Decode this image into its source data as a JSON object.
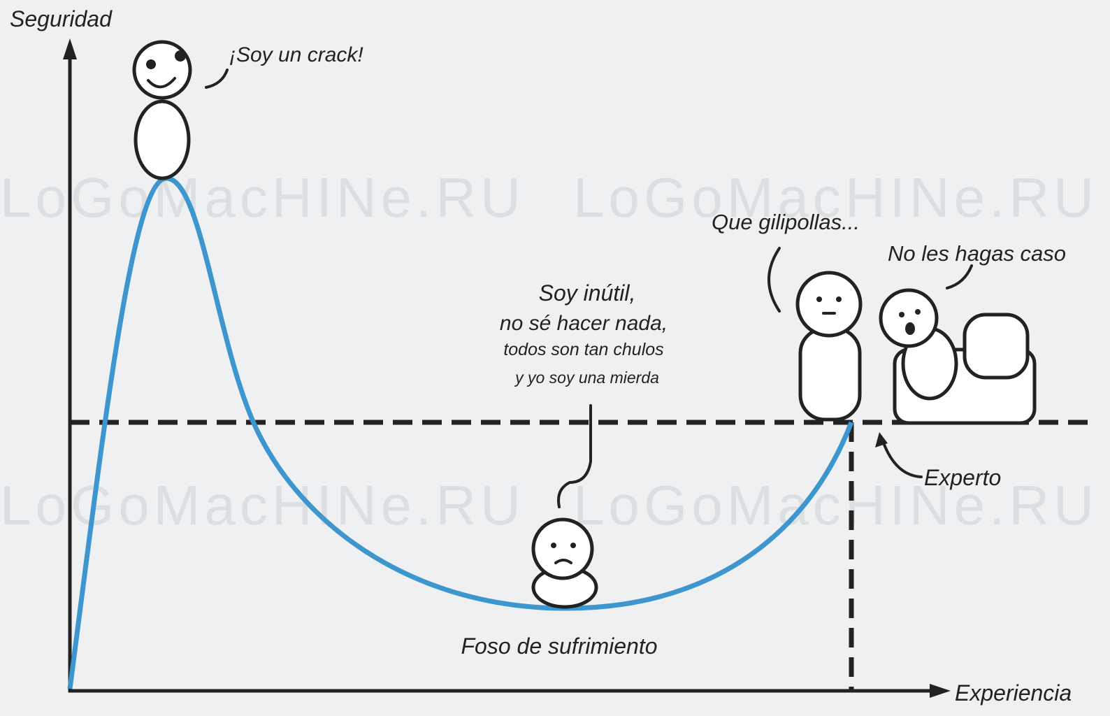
{
  "axes": {
    "y_label": "Seguridad",
    "x_label": "Experiencia"
  },
  "annotations": {
    "peak": "¡Soy un crack!",
    "pit_lines": [
      "Soy inútil,",
      "no sé hacer nada,",
      "todos son tan chulos",
      "y yo soy una mierda"
    ],
    "pit": "Foso de sufrimiento",
    "expert_a": "Que gilipollas...",
    "expert_b": "No les hagas caso",
    "expert": "Experto"
  },
  "watermark": "LoGoMacHINe.RU"
}
